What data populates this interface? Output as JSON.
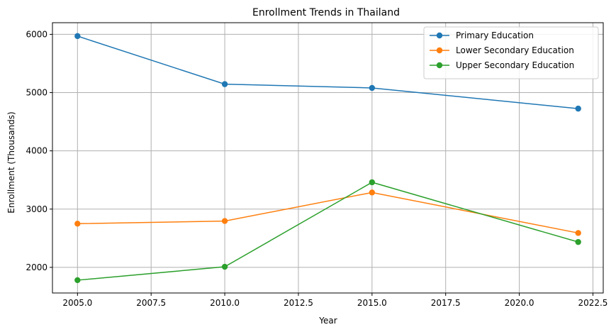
{
  "chart_data": {
    "type": "line",
    "title": "Enrollment Trends in Thailand",
    "xlabel": "Year",
    "ylabel": "Enrollment (Thousands)",
    "x": [
      2005,
      2010,
      2015,
      2022
    ],
    "xlim": [
      2004.15,
      2022.85
    ],
    "ylim": [
      1560,
      6200
    ],
    "xticks": [
      2005,
      2007.5,
      2010,
      2012.5,
      2015,
      2017.5,
      2020,
      2022.5
    ],
    "xtick_labels": [
      "2005.0",
      "2007.5",
      "2010.0",
      "2012.5",
      "2015.0",
      "2017.5",
      "2020.0",
      "2022.5"
    ],
    "yticks": [
      2000,
      3000,
      4000,
      5000,
      6000
    ],
    "ytick_labels": [
      "2000",
      "3000",
      "4000",
      "5000",
      "6000"
    ],
    "grid": true,
    "legend_position": "top-right",
    "series": [
      {
        "name": "Primary Education",
        "color": "#1f77b4",
        "values": [
          5970,
          5145,
          5080,
          4725
        ]
      },
      {
        "name": "Lower Secondary Education",
        "color": "#ff7f0e",
        "values": [
          2750,
          2795,
          3285,
          2590
        ]
      },
      {
        "name": "Upper Secondary Education",
        "color": "#2ca02c",
        "values": [
          1780,
          2010,
          3460,
          2435
        ]
      }
    ]
  }
}
